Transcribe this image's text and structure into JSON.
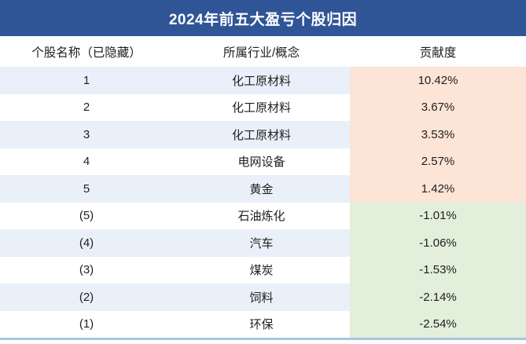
{
  "chart_data": {
    "type": "table",
    "title": "2024年前五大盈亏个股归因",
    "columns": [
      "个股名称（已隐藏）",
      "所属行业/概念",
      "贡献度"
    ],
    "rows": [
      {
        "rank": "1",
        "industry": "化工原材料",
        "contribution": "10.42%",
        "sign": "positive"
      },
      {
        "rank": "2",
        "industry": "化工原材料",
        "contribution": "3.67%",
        "sign": "positive"
      },
      {
        "rank": "3",
        "industry": "化工原材料",
        "contribution": "3.53%",
        "sign": "positive"
      },
      {
        "rank": "4",
        "industry": "电网设备",
        "contribution": "2.57%",
        "sign": "positive"
      },
      {
        "rank": "5",
        "industry": "黄金",
        "contribution": "1.42%",
        "sign": "positive"
      },
      {
        "rank": "(5)",
        "industry": "石油炼化",
        "contribution": "-1.01%",
        "sign": "negative"
      },
      {
        "rank": "(4)",
        "industry": "汽车",
        "contribution": "-1.06%",
        "sign": "negative"
      },
      {
        "rank": "(3)",
        "industry": "煤炭",
        "contribution": "-1.53%",
        "sign": "negative"
      },
      {
        "rank": "(2)",
        "industry": "饲料",
        "contribution": "-2.14%",
        "sign": "negative"
      },
      {
        "rank": "(1)",
        "industry": "环保",
        "contribution": "-2.54%",
        "sign": "negative"
      }
    ],
    "legend_position": "none",
    "grid": "off"
  },
  "colors": {
    "header_bg": "#2F5597",
    "header_text": "#FFFFFF",
    "stripe_bg": "#EAF0F9",
    "positive_bg": "#FCE4D6",
    "negative_bg": "#E2EFDA",
    "bottom_line": "#A9C7E2",
    "text": "#1F1F1F"
  }
}
